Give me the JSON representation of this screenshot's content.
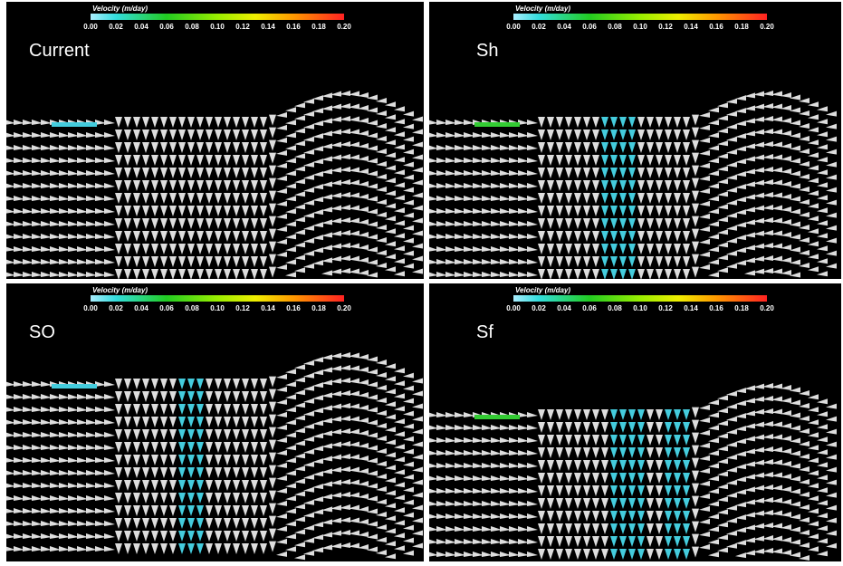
{
  "colorbar": {
    "title": "Velocity (m/day)",
    "ticks": [
      "0.00",
      "0.02",
      "0.04",
      "0.06",
      "0.08",
      "0.10",
      "0.12",
      "0.14",
      "0.16",
      "0.18",
      "0.20"
    ]
  },
  "panels": [
    {
      "label": "Current"
    },
    {
      "label": "Sh"
    },
    {
      "label": "SO"
    },
    {
      "label": "Sf"
    }
  ]
}
